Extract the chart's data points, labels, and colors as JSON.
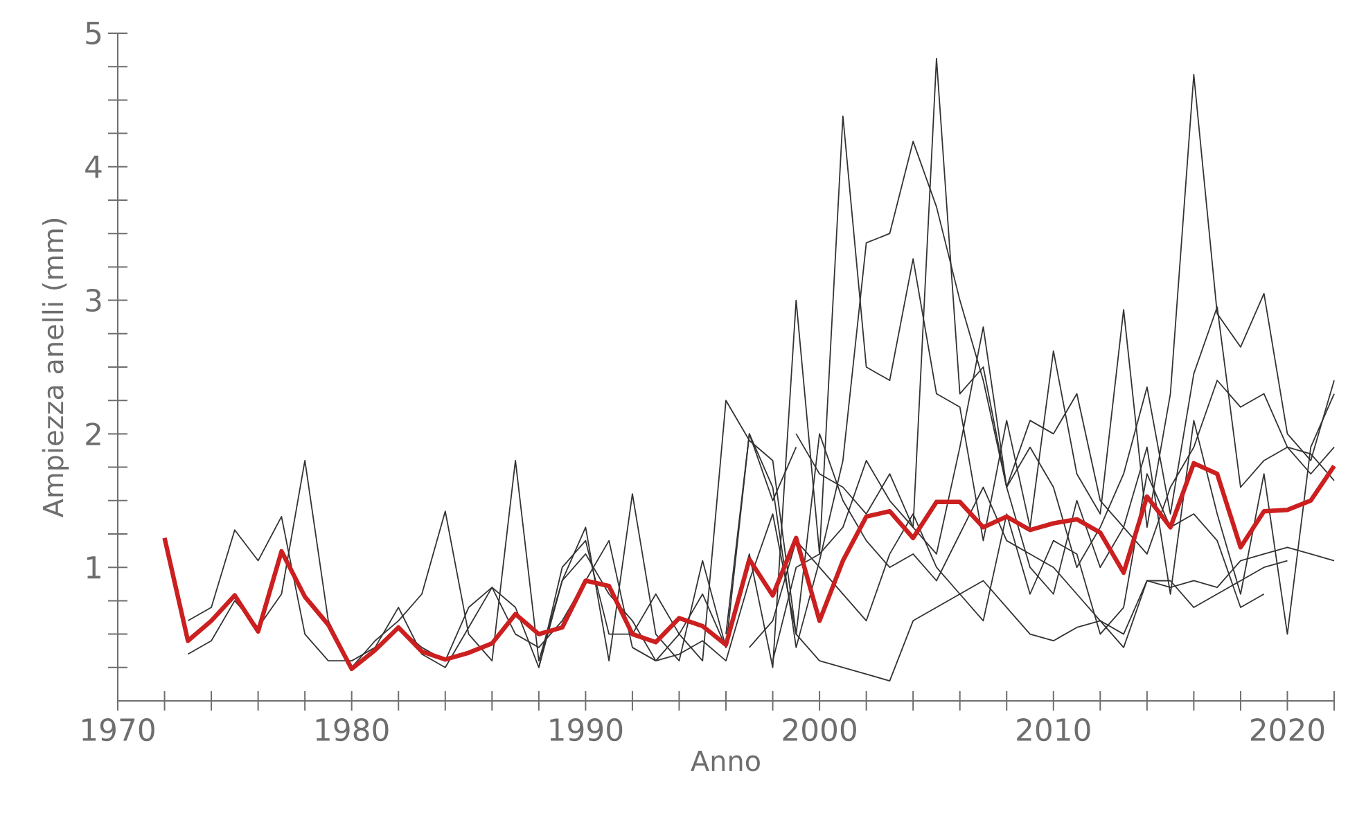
{
  "chart_data": {
    "type": "line",
    "xlabel": "Anno",
    "ylabel": "Ampiezza anelli (mm)",
    "xlim": [
      1970,
      2022
    ],
    "ylim": [
      0,
      5
    ],
    "xticks": [
      1970,
      {
        "value": 1972,
        "label": null
      },
      {
        "value": 1974,
        "label": null
      },
      {
        "value": 1976,
        "label": null
      },
      {
        "value": 1978,
        "label": null
      },
      1980,
      {
        "value": 1982,
        "label": null
      },
      {
        "value": 1984,
        "label": null
      },
      {
        "value": 1986,
        "label": null
      },
      {
        "value": 1988,
        "label": null
      },
      1990,
      {
        "value": 1992,
        "label": null
      },
      {
        "value": 1994,
        "label": null
      },
      {
        "value": 1996,
        "label": null
      },
      {
        "value": 1998,
        "label": null
      },
      2000,
      {
        "value": 2002,
        "label": null
      },
      {
        "value": 2004,
        "label": null
      },
      {
        "value": 2006,
        "label": null
      },
      {
        "value": 2008,
        "label": null
      },
      2010,
      {
        "value": 2012,
        "label": null
      },
      {
        "value": 2014,
        "label": null
      },
      {
        "value": 2016,
        "label": null
      },
      {
        "value": 2018,
        "label": null
      },
      2020,
      {
        "value": 2022,
        "label": null
      }
    ],
    "yticks": [
      {
        "value": 0.25,
        "label": null
      },
      {
        "value": 0.5,
        "label": null
      },
      {
        "value": 0.75,
        "label": null
      },
      1,
      {
        "value": 1.25,
        "label": null
      },
      {
        "value": 1.5,
        "label": null
      },
      {
        "value": 1.75,
        "label": null
      },
      2,
      {
        "value": 2.25,
        "label": null
      },
      {
        "value": 2.5,
        "label": null
      },
      {
        "value": 2.75,
        "label": null
      },
      3,
      {
        "value": 3.25,
        "label": null
      },
      {
        "value": 3.5,
        "label": null
      },
      {
        "value": 3.75,
        "label": null
      },
      4,
      {
        "value": 4.25,
        "label": null
      },
      {
        "value": 4.5,
        "label": null
      },
      {
        "value": 4.75,
        "label": null
      },
      5
    ],
    "series": [
      {
        "color": "#cc1f1f",
        "x": [
          1972,
          1973,
          1974,
          1975,
          1976,
          1977,
          1978,
          1979,
          1980,
          1981,
          1982,
          1983,
          1984,
          1985,
          1986,
          1987,
          1988,
          1989,
          1990,
          1991,
          1992,
          1993,
          1994,
          1995,
          1996,
          1997,
          1998,
          1999,
          2000,
          2001,
          2002,
          2003,
          2004,
          2005,
          2006,
          2007,
          2008,
          2009,
          2010,
          2011,
          2012,
          2013,
          2014,
          2015,
          2016,
          2017,
          2018,
          2019,
          2020,
          2021,
          2022
        ],
        "values": [
          1.22,
          0.45,
          0.6,
          0.79,
          0.52,
          1.12,
          0.78,
          0.57,
          0.24,
          0.38,
          0.55,
          0.37,
          0.31,
          0.36,
          0.43,
          0.65,
          0.5,
          0.55,
          0.9,
          0.86,
          0.5,
          0.44,
          0.62,
          0.56,
          0.42,
          1.06,
          0.79,
          1.22,
          0.6,
          1.05,
          1.38,
          1.42,
          1.22,
          1.49,
          1.49,
          1.3,
          1.38,
          1.28,
          1.33,
          1.36,
          1.26,
          0.96,
          1.53,
          1.3,
          1.78,
          1.7,
          1.15,
          1.42,
          1.43,
          1.5,
          1.76
        ]
      },
      {
        "color": "#333333",
        "x": [
          1973,
          1974,
          1975,
          1976,
          1977,
          1978,
          1979,
          1980,
          1981,
          1982,
          1983,
          1984,
          1985,
          1986,
          1987,
          1988,
          1989,
          1990,
          1991,
          1992,
          1993,
          1994,
          1995,
          1996,
          1997,
          1998,
          1999
        ],
        "values": [
          0.35,
          0.45,
          0.75,
          0.55,
          0.8,
          1.8,
          0.6,
          0.25,
          0.45,
          0.6,
          0.8,
          1.42,
          0.5,
          0.3,
          1.8,
          0.3,
          0.9,
          1.3,
          0.3,
          1.55,
          0.5,
          0.3,
          1.05,
          0.4,
          2.0,
          1.5,
          1.9
        ]
      },
      {
        "color": "#333333",
        "x": [
          1973,
          1974,
          1975,
          1976,
          1977,
          1978,
          1979,
          1980,
          1981,
          1982,
          1983,
          1984,
          1985,
          1986,
          1987,
          1988,
          1989,
          1990,
          1991,
          1992,
          1993,
          1994,
          1995,
          1996,
          1997,
          1998,
          1999,
          2000,
          2001,
          2002,
          2003,
          2004,
          2005,
          2006,
          2007,
          2008,
          2009,
          2010,
          2011,
          2012,
          2013,
          2014,
          2015,
          2016,
          2017,
          2018,
          2019,
          2020,
          2021,
          2022
        ],
        "values": [
          0.6,
          0.7,
          1.28,
          1.05,
          1.38,
          0.5,
          0.3,
          0.3,
          0.4,
          0.7,
          0.35,
          0.25,
          0.55,
          0.85,
          0.7,
          0.25,
          1.0,
          1.2,
          0.5,
          0.5,
          0.8,
          0.5,
          0.3,
          2.25,
          1.95,
          1.8,
          0.5,
          2.0,
          1.5,
          1.2,
          1.0,
          1.1,
          0.9,
          1.25,
          1.6,
          1.2,
          1.1,
          1.0,
          0.8,
          0.6,
          0.5,
          0.9,
          0.85,
          0.9,
          0.85,
          1.05,
          1.1,
          1.15,
          1.1,
          1.05
        ]
      },
      {
        "color": "#333333",
        "x": [
          1988,
          1989,
          1990,
          1991,
          1992,
          1993,
          1994,
          1995,
          1996,
          1997,
          1998,
          1999,
          2000,
          2001,
          2002,
          2003,
          2004,
          2005,
          2006,
          2007,
          2008,
          2009,
          2010,
          2011,
          2012,
          2013,
          2014,
          2015,
          2016,
          2017,
          2018,
          2019,
          2020,
          2021,
          2022
        ],
        "values": [
          0.25,
          0.9,
          1.1,
          0.8,
          0.6,
          0.3,
          0.5,
          0.8,
          0.4,
          1.1,
          0.25,
          3.0,
          1.1,
          4.38,
          2.5,
          2.4,
          3.31,
          2.3,
          2.2,
          1.2,
          2.1,
          1.3,
          2.62,
          1.7,
          1.4,
          2.93,
          1.3,
          2.3,
          4.69,
          2.9,
          2.65,
          3.05,
          2.0,
          1.8,
          2.4
        ]
      },
      {
        "color": "#333333",
        "x": [
          1996,
          1997,
          1998,
          1999,
          2000,
          2001,
          2002,
          2003,
          2004,
          2005,
          2006,
          2007,
          2008,
          2009,
          2010,
          2011,
          2012,
          2013,
          2014,
          2015,
          2016,
          2017,
          2018,
          2019,
          2020,
          2021,
          2022
        ],
        "values": [
          0.5,
          2.0,
          1.6,
          0.4,
          1.05,
          1.8,
          3.43,
          3.5,
          4.19,
          3.7,
          3.0,
          2.4,
          1.6,
          1.9,
          1.6,
          1.0,
          1.3,
          1.7,
          2.35,
          1.4,
          2.45,
          2.95,
          1.6,
          1.8,
          1.9,
          1.85,
          1.65
        ]
      },
      {
        "color": "#333333",
        "x": [
          1998,
          1999,
          2000,
          2001,
          2002,
          2003,
          2004,
          2005,
          2006,
          2007,
          2008,
          2009,
          2010,
          2011,
          2012,
          2013,
          2014,
          2015,
          2016,
          2017,
          2018,
          2019,
          2020,
          2021,
          2022
        ],
        "values": [
          0.3,
          1.0,
          1.1,
          1.3,
          1.8,
          1.5,
          1.3,
          4.81,
          2.3,
          2.5,
          1.6,
          1.0,
          0.8,
          1.5,
          1.0,
          1.3,
          1.9,
          0.8,
          2.1,
          1.4,
          0.8,
          1.7,
          0.5,
          1.9,
          2.3
        ]
      },
      {
        "color": "#333333",
        "x": [
          1982,
          1983,
          1984,
          1985,
          1986,
          1987,
          1988,
          1989,
          1990,
          1991,
          1992,
          1993,
          1994,
          1995,
          1996,
          1997,
          1998,
          1999,
          2000,
          2001,
          2002,
          2003,
          2004,
          2005,
          2006,
          2007,
          2008,
          2009,
          2010,
          2011,
          2012,
          2013,
          2014,
          2015,
          2016,
          2017,
          2018,
          2019,
          2020
        ],
        "values": [
          0.55,
          0.4,
          0.3,
          0.7,
          0.85,
          0.5,
          0.4,
          0.6,
          0.9,
          1.2,
          0.4,
          0.3,
          0.35,
          0.45,
          0.3,
          0.9,
          1.4,
          0.5,
          0.3,
          0.25,
          0.2,
          0.15,
          0.6,
          0.7,
          0.8,
          0.9,
          0.7,
          0.5,
          0.45,
          0.55,
          0.6,
          0.4,
          0.9,
          0.9,
          0.7,
          0.8,
          0.9,
          1.0,
          1.05
        ]
      },
      {
        "color": "#333333",
        "x": [
          1999,
          2000,
          2001,
          2002,
          2003,
          2004,
          2005,
          2006,
          2007,
          2008,
          2009,
          2010,
          2011,
          2012,
          2013,
          2014,
          2015,
          2016,
          2017,
          2018,
          2019,
          2020,
          2021,
          2022
        ],
        "values": [
          2.0,
          1.7,
          1.6,
          1.4,
          1.7,
          1.3,
          1.1,
          1.9,
          2.8,
          1.6,
          2.1,
          2.0,
          2.3,
          1.5,
          1.3,
          1.1,
          1.6,
          1.9,
          2.4,
          2.2,
          2.3,
          1.9,
          1.7,
          1.9
        ]
      },
      {
        "color": "#333333",
        "x": [
          1997,
          1998,
          1999,
          2000,
          2001,
          2002,
          2003,
          2004,
          2005,
          2006,
          2007,
          2008,
          2009,
          2010,
          2011,
          2012,
          2013,
          2014,
          2015,
          2016,
          2017,
          2018,
          2019
        ],
        "values": [
          0.4,
          0.6,
          1.2,
          1.0,
          0.8,
          0.6,
          1.1,
          1.4,
          1.0,
          0.8,
          0.6,
          1.4,
          0.8,
          1.2,
          1.1,
          0.5,
          0.7,
          1.7,
          1.3,
          1.4,
          1.2,
          0.7,
          0.8
        ]
      }
    ]
  }
}
